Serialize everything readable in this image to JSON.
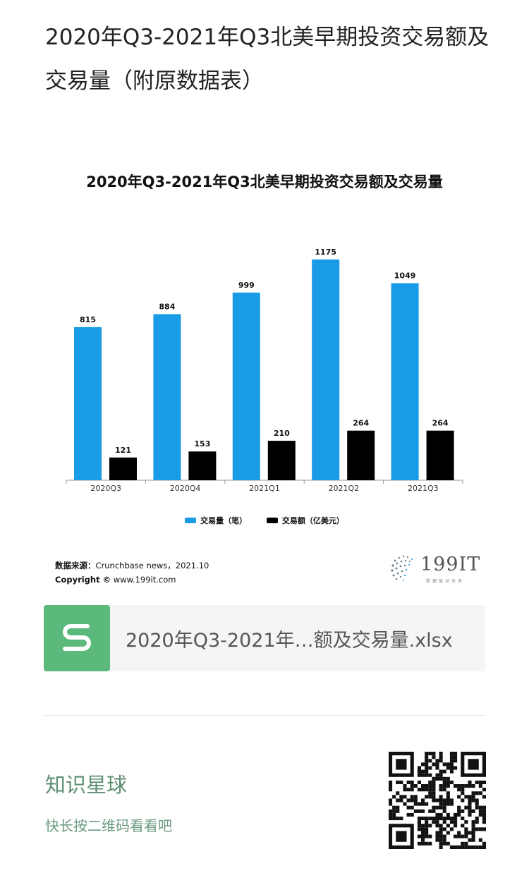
{
  "page_title": "2020年Q3-2021年Q3北美早期投资交易额及交易量（附原数据表）",
  "chart_data": {
    "type": "bar",
    "title": "2020年Q3-2021年Q3北美早期投资交易额及交易量",
    "categories": [
      "2020Q3",
      "2020Q4",
      "2021Q1",
      "2021Q2",
      "2021Q3"
    ],
    "series": [
      {
        "name": "交易量（笔）",
        "values": [
          815,
          884,
          999,
          1175,
          1049
        ],
        "color": "#1a9be6"
      },
      {
        "name": "交易额（亿美元）",
        "values": [
          121,
          153,
          210,
          264,
          264
        ],
        "color": "#000000"
      }
    ],
    "ylim": [
      0,
      1175
    ],
    "grid": false,
    "legend_position": "bottom"
  },
  "source": {
    "label": "数据来源：",
    "text": "Crunchbase news，2021.10",
    "copyright_label": "Copyright ©",
    "copyright_text": "www.199it.com"
  },
  "brand": {
    "name": "199IT",
    "tagline": "数据驱动未来"
  },
  "attachment": {
    "file_name": "2020年Q3-2021年…额及交易量.xlsx",
    "icon": "file-s-icon",
    "color": "#5bb97b"
  },
  "planet": {
    "title": "知识星球",
    "subtitle": "快长按二维码看看吧"
  }
}
